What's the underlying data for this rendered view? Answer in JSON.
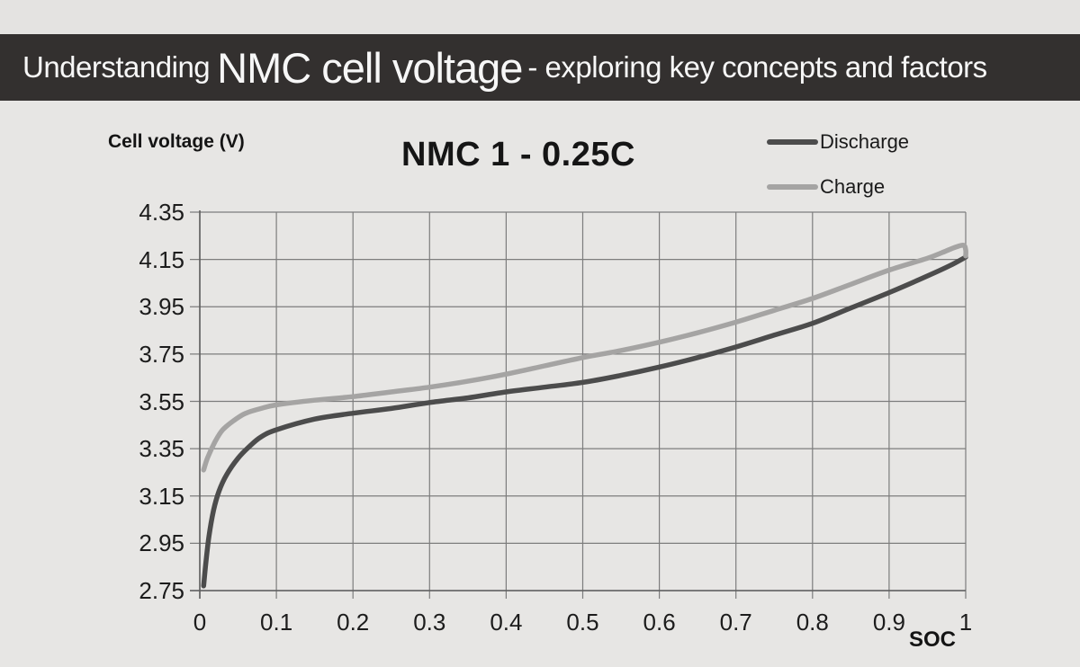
{
  "banner": {
    "prefix": "Understanding",
    "highlight": "NMC cell voltage",
    "suffix": "- exploring key concepts and factors"
  },
  "chart": {
    "title": "NMC 1 - 0.25C",
    "ylabel": "Cell voltage (V)",
    "xlabel": "SOC"
  },
  "colors": {
    "banner_bg": "#33302f",
    "banner_text": "#f7f7f7",
    "page_bg": "#e7e6e4",
    "gridline": "#7d7d7d",
    "axis": "#5f5f5f",
    "discharge": "#4c4c4c",
    "charge": "#a5a4a3"
  },
  "chart_data": {
    "type": "line",
    "title": "NMC 1 - 0.25C",
    "xlabel": "SOC",
    "ylabel": "Cell voltage (V)",
    "xlim": [
      0,
      1
    ],
    "ylim": [
      2.75,
      4.35
    ],
    "xticks": [
      0,
      0.1,
      0.2,
      0.3,
      0.4,
      0.5,
      0.6,
      0.7,
      0.8,
      0.9,
      1
    ],
    "xtick_labels": [
      "0",
      "0.1",
      "0.2",
      "0.3",
      "0.4",
      "0.5",
      "0.6",
      "0.7",
      "0.8",
      "0.9",
      "1"
    ],
    "yticks": [
      2.75,
      2.95,
      3.15,
      3.35,
      3.55,
      3.75,
      3.95,
      4.15,
      4.35
    ],
    "ytick_labels": [
      "2.75",
      "2.95",
      "3.15",
      "3.35",
      "3.55",
      "3.75",
      "3.95",
      "4.15",
      "4.35"
    ],
    "grid": true,
    "legend_position": "top-right",
    "series": [
      {
        "name": "Discharge",
        "color": "#4c4c4c",
        "x": [
          0.005,
          0.008,
          0.012,
          0.018,
          0.025,
          0.035,
          0.05,
          0.065,
          0.08,
          0.1,
          0.15,
          0.2,
          0.25,
          0.3,
          0.35,
          0.4,
          0.45,
          0.5,
          0.55,
          0.6,
          0.65,
          0.7,
          0.75,
          0.8,
          0.85,
          0.9,
          0.95,
          0.98,
          1.0
        ],
        "y": [
          2.77,
          2.87,
          2.98,
          3.09,
          3.17,
          3.24,
          3.31,
          3.36,
          3.4,
          3.43,
          3.475,
          3.5,
          3.52,
          3.545,
          3.565,
          3.59,
          3.61,
          3.63,
          3.66,
          3.695,
          3.735,
          3.78,
          3.83,
          3.88,
          3.945,
          4.01,
          4.08,
          4.125,
          4.16
        ]
      },
      {
        "name": "Charge",
        "color": "#a5a4a3",
        "x": [
          0.005,
          0.01,
          0.02,
          0.03,
          0.045,
          0.06,
          0.08,
          0.1,
          0.15,
          0.2,
          0.25,
          0.3,
          0.35,
          0.4,
          0.45,
          0.5,
          0.55,
          0.6,
          0.65,
          0.7,
          0.75,
          0.8,
          0.85,
          0.9,
          0.95,
          0.97,
          0.985,
          0.997,
          1.0,
          1.0
        ],
        "y": [
          3.26,
          3.31,
          3.38,
          3.43,
          3.47,
          3.5,
          3.52,
          3.535,
          3.555,
          3.57,
          3.59,
          3.61,
          3.635,
          3.665,
          3.7,
          3.735,
          3.765,
          3.8,
          3.84,
          3.885,
          3.935,
          3.985,
          4.045,
          4.105,
          4.155,
          4.18,
          4.2,
          4.21,
          4.19,
          4.165
        ]
      }
    ]
  }
}
